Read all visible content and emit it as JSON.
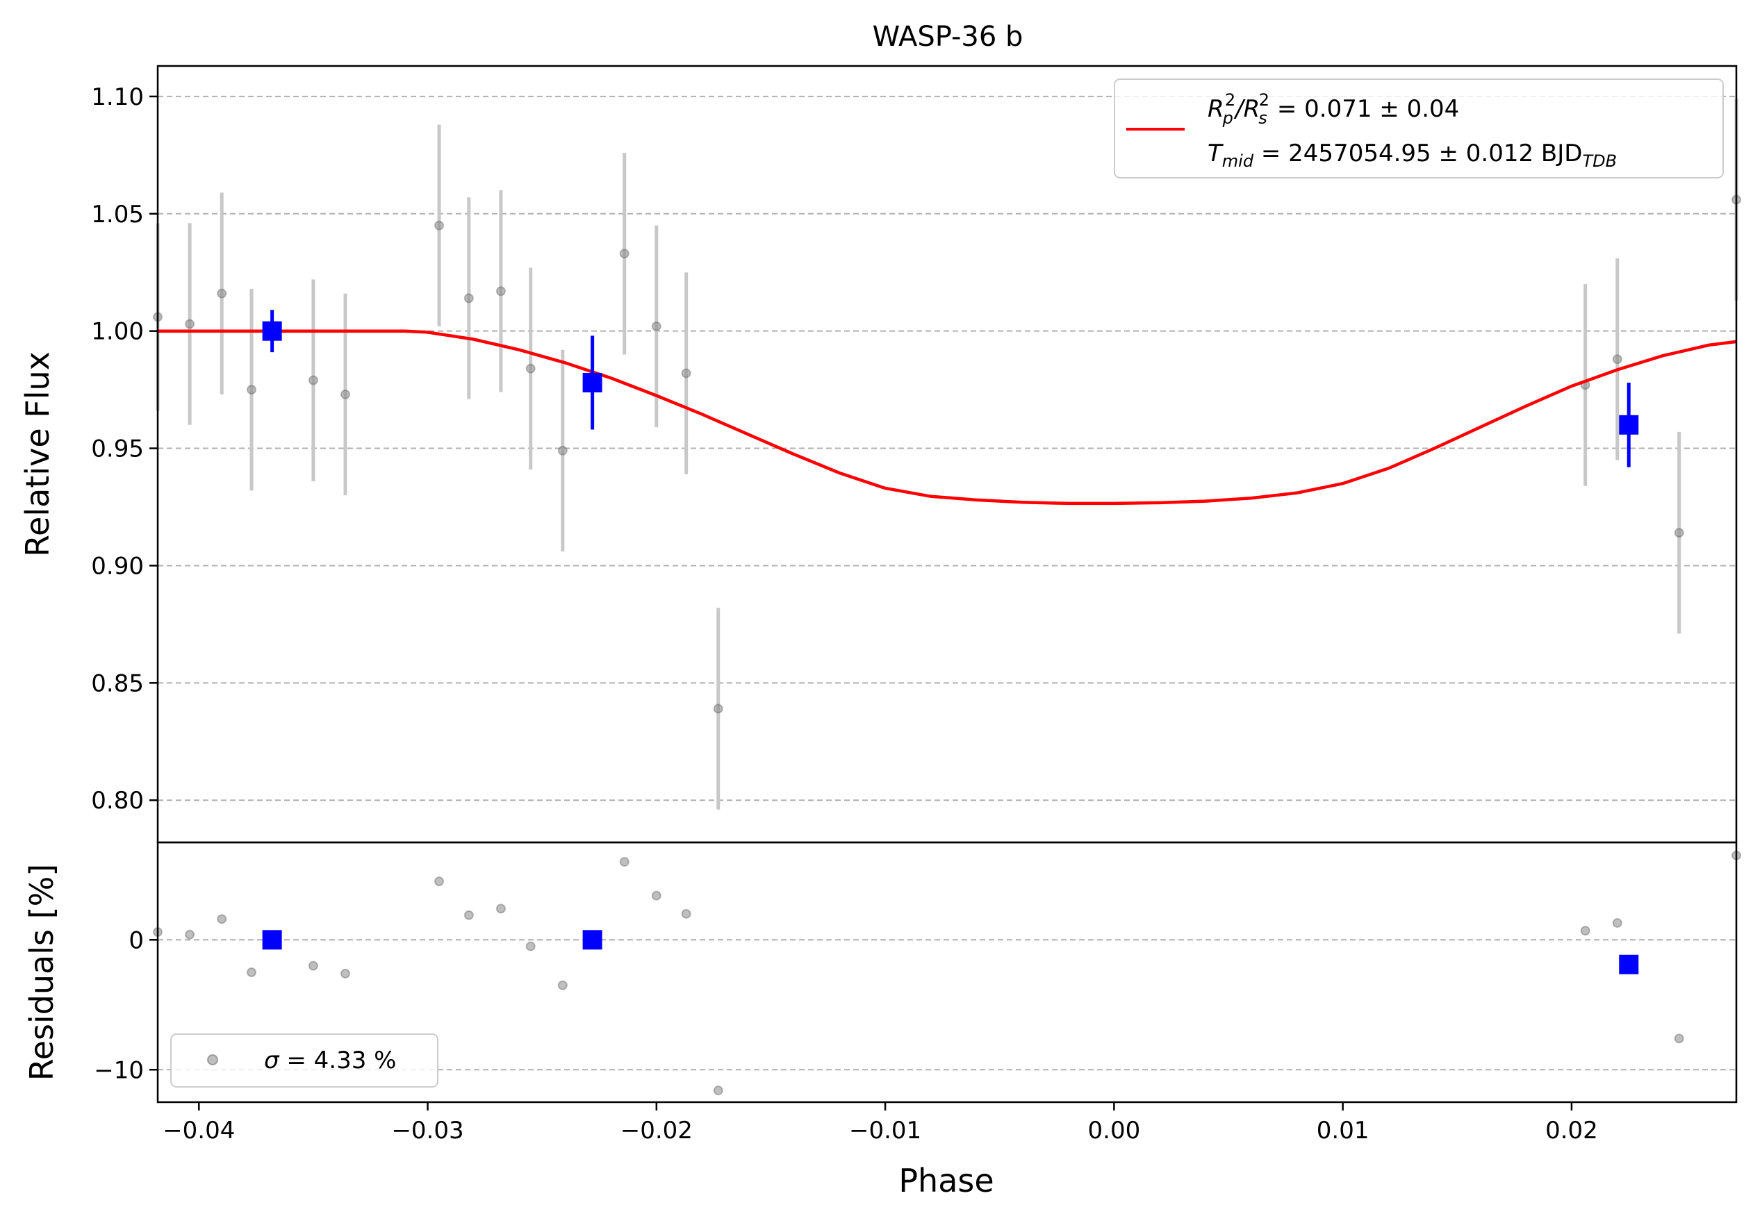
{
  "chart_data": [
    {
      "type": "scatter",
      "title": "WASP-36 b",
      "xlabel": "",
      "ylabel": "Relative Flux",
      "xlim": [
        -0.0418,
        0.0272
      ],
      "ylim": [
        0.782,
        1.113
      ],
      "yticks": [
        "0.80",
        "0.85",
        "0.90",
        "0.95",
        "1.00",
        "1.05",
        "1.10"
      ],
      "grid": "y-dashed",
      "legend": {
        "placement": "upper right",
        "line1": {
          "pre": "R",
          "sub1": "p",
          "sup1": "2",
          "mid": "/R",
          "sub2": "s",
          "sup2": "2",
          "post": " = 0.071 ± 0.04"
        },
        "line2": {
          "pre": "T",
          "sub1": "mid",
          "post": " = 2457054.95 ± 0.012 BJD",
          "sub2": "TDB"
        }
      },
      "colors": {
        "model": "#ff0000",
        "binned": "#0000ff",
        "raw": "#808080",
        "errorbar": "#c8c8c8"
      },
      "raw_points": [
        {
          "x": -0.0418,
          "y": 1.006,
          "err": 0.04
        },
        {
          "x": -0.0404,
          "y": 1.003,
          "err": 0.043
        },
        {
          "x": -0.039,
          "y": 1.016,
          "err": 0.043
        },
        {
          "x": -0.0377,
          "y": 0.975,
          "err": 0.043
        },
        {
          "x": -0.035,
          "y": 0.979,
          "err": 0.043
        },
        {
          "x": -0.0336,
          "y": 0.973,
          "err": 0.043
        },
        {
          "x": -0.0295,
          "y": 1.045,
          "err": 0.043
        },
        {
          "x": -0.0282,
          "y": 1.014,
          "err": 0.043
        },
        {
          "x": -0.0268,
          "y": 1.017,
          "err": 0.043
        },
        {
          "x": -0.0255,
          "y": 0.984,
          "err": 0.043
        },
        {
          "x": -0.0241,
          "y": 0.949,
          "err": 0.043
        },
        {
          "x": -0.0214,
          "y": 1.033,
          "err": 0.043
        },
        {
          "x": -0.02,
          "y": 1.002,
          "err": 0.043
        },
        {
          "x": -0.0187,
          "y": 0.982,
          "err": 0.043
        },
        {
          "x": -0.0173,
          "y": 0.839,
          "err": 0.043
        },
        {
          "x": 0.0206,
          "y": 0.977,
          "err": 0.043
        },
        {
          "x": 0.022,
          "y": 0.988,
          "err": 0.043
        },
        {
          "x": 0.0247,
          "y": 0.914,
          "err": 0.043
        },
        {
          "x": 0.0272,
          "y": 1.056,
          "err": 0.043
        }
      ],
      "binned_points": [
        {
          "x": -0.0368,
          "y": 1.0,
          "err": 0.009
        },
        {
          "x": -0.0228,
          "y": 0.978,
          "err": 0.02
        },
        {
          "x": 0.0225,
          "y": 0.96,
          "err": 0.018
        }
      ],
      "model": {
        "x": [
          -0.0418,
          -0.031,
          -0.03,
          -0.028,
          -0.026,
          -0.024,
          -0.022,
          -0.02,
          -0.018,
          -0.016,
          -0.014,
          -0.012,
          -0.01,
          -0.008,
          -0.006,
          -0.004,
          -0.002,
          0.0,
          0.002,
          0.004,
          0.006,
          0.008,
          0.01,
          0.012,
          0.014,
          0.016,
          0.018,
          0.02,
          0.022,
          0.024,
          0.026,
          0.0272
        ],
        "y": [
          1.0,
          1.0,
          0.9995,
          0.9965,
          0.992,
          0.9865,
          0.98,
          0.9725,
          0.9645,
          0.956,
          0.9475,
          0.9395,
          0.933,
          0.9295,
          0.928,
          0.927,
          0.9265,
          0.9265,
          0.9268,
          0.9275,
          0.9288,
          0.931,
          0.935,
          0.9415,
          0.95,
          0.959,
          0.968,
          0.9765,
          0.9835,
          0.9895,
          0.994,
          0.9955
        ]
      }
    },
    {
      "type": "scatter",
      "xlabel": "Phase",
      "ylabel": "Residuals [%]",
      "xlim": [
        -0.0418,
        0.0272
      ],
      "ylim": [
        -12.5,
        7.5
      ],
      "xticks": [
        "−0.04",
        "−0.03",
        "−0.02",
        "−0.01",
        "0.00",
        "0.01",
        "0.02"
      ],
      "xtick_values": [
        -0.04,
        -0.03,
        -0.02,
        -0.01,
        0.0,
        0.01,
        0.02
      ],
      "yticks": [
        "−10",
        "0"
      ],
      "ytick_values": [
        -10,
        0
      ],
      "grid": "y-dashed",
      "legend": {
        "placement": "lower left",
        "symbol": "σ",
        "text": " = 4.33 %"
      },
      "raw_points": [
        {
          "x": -0.0418,
          "y": 0.6
        },
        {
          "x": -0.0404,
          "y": 0.4
        },
        {
          "x": -0.039,
          "y": 1.6
        },
        {
          "x": -0.0377,
          "y": -2.5
        },
        {
          "x": -0.035,
          "y": -2.0
        },
        {
          "x": -0.0336,
          "y": -2.6
        },
        {
          "x": -0.0295,
          "y": 4.5
        },
        {
          "x": -0.0282,
          "y": 1.9
        },
        {
          "x": -0.0268,
          "y": 2.4
        },
        {
          "x": -0.0255,
          "y": -0.5
        },
        {
          "x": -0.0241,
          "y": -3.5
        },
        {
          "x": -0.0214,
          "y": 6.0
        },
        {
          "x": -0.02,
          "y": 3.4
        },
        {
          "x": -0.0187,
          "y": 2.0
        },
        {
          "x": 0.0206,
          "y": 0.7
        },
        {
          "x": 0.022,
          "y": 1.3
        },
        {
          "x": 0.0247,
          "y": -7.6
        },
        {
          "x": 0.0272,
          "y": 6.5
        },
        {
          "x": -0.0173,
          "y": -11.6
        }
      ],
      "binned_points": [
        {
          "x": -0.0368,
          "y": 0.0
        },
        {
          "x": -0.0228,
          "y": 0.0
        },
        {
          "x": 0.0225,
          "y": -1.9
        }
      ]
    }
  ]
}
